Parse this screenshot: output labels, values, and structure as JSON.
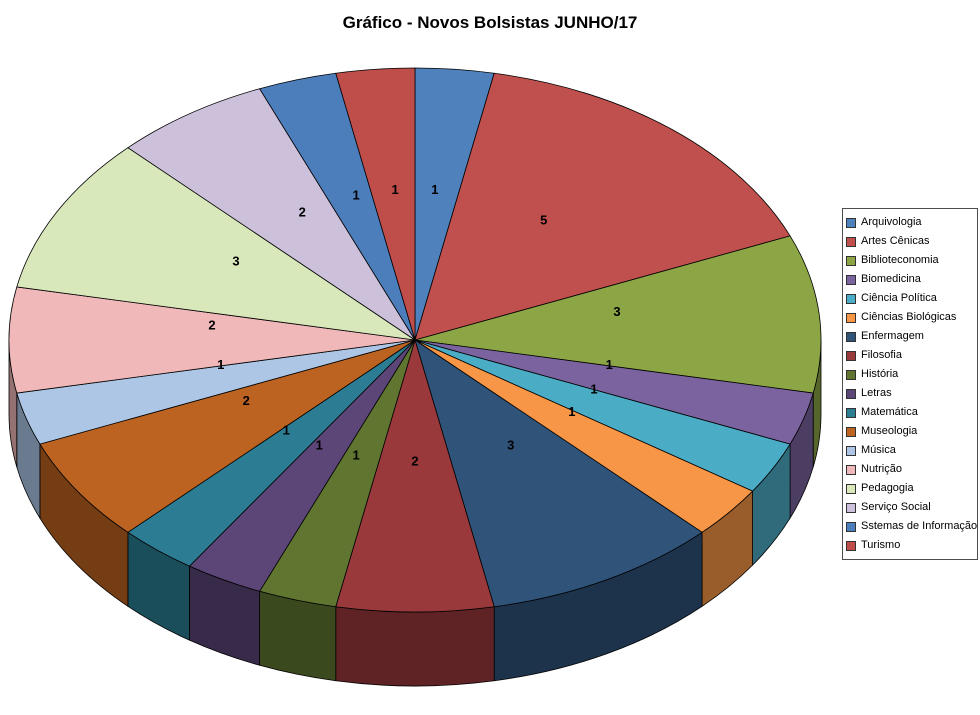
{
  "page": {
    "background": "#FFFFFF"
  },
  "chart_data": {
    "type": "pie",
    "style": "3d-pie",
    "title": "Gráfico - Novos Bolsistas JUNHO/17",
    "data_labels": "values",
    "legend_position": "right",
    "start_angle_deg": 0,
    "direction": "clockwise",
    "total": 32,
    "series": [
      {
        "label": "Arquivologia",
        "value": 1,
        "color": "#4F81BD"
      },
      {
        "label": "Artes Cênicas",
        "value": 5,
        "color": "#C0504D"
      },
      {
        "label": "Biblioteconomia",
        "value": 3,
        "color": "#8CA646"
      },
      {
        "label": "Biomedicina",
        "value": 1,
        "color": "#7B639F"
      },
      {
        "label": "Ciência Política",
        "value": 1,
        "color": "#4BACC6"
      },
      {
        "label": "Ciências Biológicas",
        "value": 1,
        "color": "#F79646"
      },
      {
        "label": "Enfermagem",
        "value": 3,
        "color": "#2F5379"
      },
      {
        "label": "Filosofia",
        "value": 2,
        "color": "#99393B"
      },
      {
        "label": "História",
        "value": 1,
        "color": "#5F7530"
      },
      {
        "label": "Letras",
        "value": 1,
        "color": "#5B4677"
      },
      {
        "label": "Matemática",
        "value": 1,
        "color": "#2C7D93"
      },
      {
        "label": "Museologia",
        "value": 2,
        "color": "#BC6321"
      },
      {
        "label": "Música",
        "value": 1,
        "color": "#ADC6E6"
      },
      {
        "label": "Nutrição",
        "value": 2,
        "color": "#F0B8B8"
      },
      {
        "label": "Pedagogia",
        "value": 3,
        "color": "#D9E8BB"
      },
      {
        "label": "Serviço Social",
        "value": 2,
        "color": "#CCC0DA"
      },
      {
        "label": "Sstemas de Informação",
        "value": 1,
        "color": "#4C7EBB"
      },
      {
        "label": "Turismo",
        "value": 1,
        "color": "#BF4E4B"
      }
    ]
  }
}
